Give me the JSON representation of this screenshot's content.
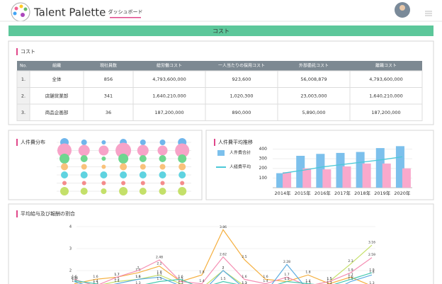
{
  "header": {
    "logo": "Talent Palette",
    "tab": "ダッシュボード"
  },
  "banner": "コスト",
  "cost_panel": {
    "title": "コスト",
    "table": {
      "columns": [
        "No.",
        "組織",
        "現社員数",
        "総労働コスト",
        "一人当たりの採用コスト",
        "外部委託コスト",
        "離職コスト"
      ],
      "rows": [
        [
          "1.",
          "全体",
          "856",
          "4,793,600,000",
          "923,600",
          "56,008,879",
          "4,793,600,000"
        ],
        [
          "2.",
          "店舗営業部",
          "341",
          "1,640,210,000",
          "1,020,300",
          "23,003,000",
          "1,640,210,000"
        ],
        [
          "3.",
          "商品企画部",
          "36",
          "187,200,000",
          "890,000",
          "5,890,000",
          "187,200,000"
        ]
      ]
    }
  },
  "chart_data": [
    {
      "type": "bubble",
      "title": "人件費分布",
      "series": [
        {
          "color": "#6fb6ec",
          "values": [
            6,
            4,
            3,
            5,
            4,
            4,
            6
          ]
        },
        {
          "color": "#f7a3c8",
          "values": [
            10,
            8,
            7,
            11,
            8,
            7,
            10
          ]
        },
        {
          "color": "#6fd68f",
          "values": [
            7,
            5,
            3,
            7,
            5,
            5,
            6
          ]
        },
        {
          "color": "#f9c27a",
          "values": [
            5,
            4,
            3,
            5,
            4,
            4,
            5
          ]
        },
        {
          "color": "#5fd3e0",
          "values": [
            5,
            5,
            5,
            5,
            5,
            5,
            5
          ]
        },
        {
          "color": "#f48b8b",
          "values": [
            3,
            3,
            3,
            3,
            3,
            3,
            3
          ]
        },
        {
          "color": "#c4e06a",
          "values": [
            6,
            5,
            4,
            6,
            5,
            5,
            6
          ]
        }
      ]
    },
    {
      "type": "bar-line",
      "title": "人件費平均推移",
      "categories": [
        "2014年",
        "2015年",
        "2016年",
        "2017年",
        "2018年",
        "2019年",
        "2020年"
      ],
      "series": [
        {
          "name": "人件費合計",
          "type": "bar",
          "color": "#7cc0ec",
          "values": [
            150,
            330,
            350,
            360,
            370,
            410,
            430
          ]
        },
        {
          "type": "bar",
          "color": "#f9a9cc",
          "values": [
            160,
            200,
            190,
            220,
            250,
            250,
            200
          ]
        },
        {
          "name": "人経費平均",
          "type": "line",
          "color": "#4cc9d8",
          "values": [
            150,
            180,
            215,
            240,
            265,
            290,
            320
          ]
        }
      ],
      "ylim": [
        0,
        440
      ],
      "yticks": [
        100,
        200,
        300,
        400
      ]
    },
    {
      "type": "line",
      "title": "平均給与及び報酬の割合",
      "series": [
        {
          "color": "#f5b041",
          "values": [
            1.4,
            1.6,
            1.7,
            1.9,
            2.2,
            1.5,
            1.8,
            3.86,
            2.5,
            1.6,
            1.5,
            1.8,
            1.4,
            1.7,
            1.3
          ]
        },
        {
          "color": "#c5e06a",
          "values": [
            1.2,
            1.3,
            1.5,
            1.6,
            1.8,
            1.4,
            1.2,
            2.0,
            1.3,
            1.2,
            1.0,
            1.3,
            1.5,
            2.3,
            3.16
          ]
        },
        {
          "color": "#f58fb3",
          "values": [
            1.6,
            1.3,
            1.7,
            2.0,
            2.48,
            1.5,
            1.4,
            2.62,
            1.6,
            1.4,
            1.7,
            1.3,
            1.5,
            1.9,
            2.59
          ]
        },
        {
          "color": "#5dade2",
          "values": [
            1.5,
            1.2,
            1.4,
            1.6,
            1.7,
            1.3,
            1.0,
            2.0,
            1.2,
            1.0,
            2.28,
            1.1,
            1.0,
            1.5,
            1.8
          ]
        },
        {
          "color": "#48c9b0",
          "values": [
            1.54,
            1.4,
            1.2,
            1.3,
            1.5,
            1.6,
            1.2,
            1.5,
            1.3,
            1.2,
            1.5,
            1.4,
            1.3,
            1.6,
            1.9
          ]
        }
      ],
      "ylim": [
        1,
        4
      ],
      "yticks": [
        2,
        3,
        4
      ]
    }
  ]
}
